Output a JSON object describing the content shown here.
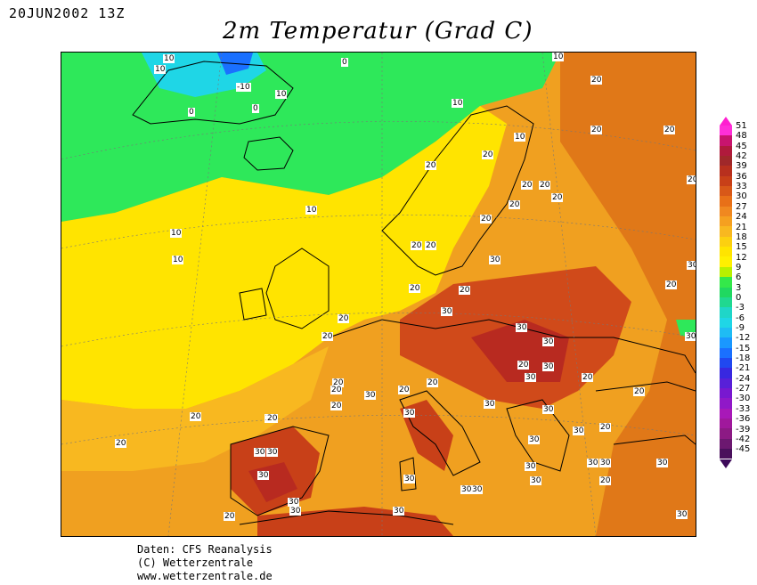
{
  "header": {
    "date": "20JUN2002 13Z",
    "title": "2m Temperatur (Grad C)"
  },
  "colors": {
    "green": "#2ee85a",
    "cyan": "#1fd6e6",
    "blue": "#1a70ff",
    "yellow": "#ffe400",
    "orange": "#f0a020",
    "dark_orange": "#e07818",
    "red": "#d04a1a",
    "dark_red": "#b82a20"
  },
  "map": {
    "contour_labels": [
      "10",
      "10",
      "-10",
      "10",
      "0",
      "0",
      "10",
      "0",
      "10",
      "20",
      "20",
      "20",
      "10",
      "20",
      "20",
      "20",
      "20",
      "20",
      "20",
      "20",
      "20",
      "20",
      "20",
      "10",
      "10",
      "10",
      "20",
      "20",
      "20",
      "20",
      "20",
      "20",
      "30",
      "20",
      "30",
      "20",
      "30",
      "30",
      "30",
      "20",
      "30",
      "30",
      "30",
      "30",
      "30",
      "30",
      "20",
      "20",
      "30",
      "30",
      "30",
      "20",
      "20",
      "30",
      "30",
      "30",
      "30",
      "30",
      "20",
      "20",
      "30",
      "30",
      "20",
      "30",
      "30",
      "30",
      "20",
      "30",
      "20",
      "20",
      "30",
      "30",
      "20",
      "30",
      "30",
      "30"
    ]
  },
  "legend": {
    "ticks": [
      "51",
      "48",
      "45",
      "42",
      "39",
      "36",
      "33",
      "30",
      "27",
      "24",
      "21",
      "18",
      "15",
      "12",
      "9",
      "6",
      "3",
      "0",
      "-3",
      "-6",
      "-9",
      "-12",
      "-15",
      "-18",
      "-21",
      "-24",
      "-27",
      "-30",
      "-33",
      "-36",
      "-39",
      "-42",
      "-45"
    ],
    "colors": [
      "#ff2fd8",
      "#c8146e",
      "#b01a3c",
      "#a0282a",
      "#b8301e",
      "#c84018",
      "#d85818",
      "#e87018",
      "#f08820",
      "#f5a020",
      "#f8b820",
      "#fcd010",
      "#ffe400",
      "#fff000",
      "#b8f000",
      "#34e84a",
      "#20d860",
      "#20d890",
      "#1fd6c8",
      "#1fd6e6",
      "#1fbcf4",
      "#1a98ff",
      "#1a70ff",
      "#2048f0",
      "#3828e0",
      "#5820d8",
      "#7818d0",
      "#9018c8",
      "#a818b8",
      "#a0189c",
      "#8c1a84",
      "#6c1870",
      "#4a105c"
    ]
  },
  "credits": {
    "line1": "Daten: CFS Reanalysis",
    "line2": "(C) Wetterzentrale",
    "line3": "www.wetterzentrale.de"
  }
}
